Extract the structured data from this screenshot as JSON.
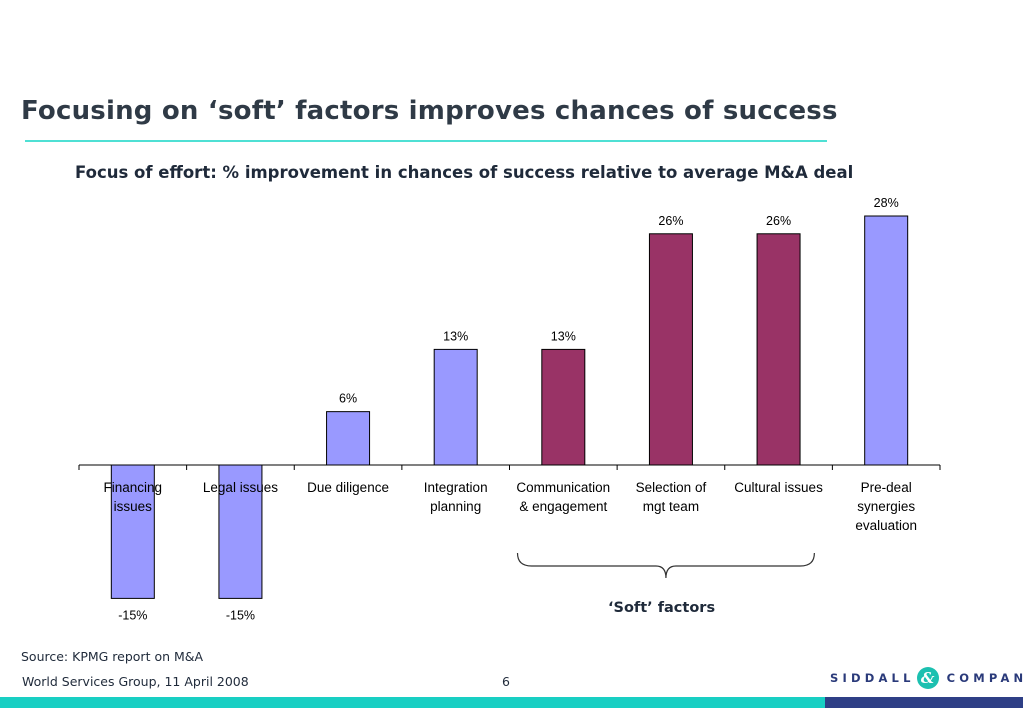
{
  "page": {
    "title": "Focusing on ‘soft’ factors improves chances of success",
    "source": "Source: KPMG report on M&A",
    "footer": "World Services Group, 11 April 2008",
    "page_number": "6",
    "logo": {
      "left": "SIDDALL",
      "amp": "&",
      "right": "COMPANY"
    }
  },
  "chart_data": {
    "type": "bar",
    "title": "Focus of effort:  % improvement in chances of success relative to average M&A deal",
    "categories": [
      [
        "Financing",
        "issues"
      ],
      [
        "Legal issues"
      ],
      [
        "Due diligence"
      ],
      [
        "Integration",
        "planning"
      ],
      [
        "Communication",
        "& engagement"
      ],
      [
        "Selection of",
        "mgt team"
      ],
      [
        "Cultural issues"
      ],
      [
        "Pre-deal",
        "synergies",
        "evaluation"
      ]
    ],
    "values": [
      -15,
      -15,
      6,
      13,
      13,
      26,
      26,
      28
    ],
    "data_labels": [
      "-15%",
      "-15%",
      "6%",
      "13%",
      "13%",
      "26%",
      "26%",
      "28%"
    ],
    "soft_factor": [
      false,
      false,
      false,
      false,
      true,
      true,
      true,
      false
    ],
    "colors": {
      "default": "#9999ff",
      "soft": "#993366",
      "outline": "#000000"
    },
    "annotation": "‘Soft’ factors",
    "bracket_categories": [
      4,
      6
    ],
    "ylim": [
      -15,
      28
    ],
    "grid": false,
    "legend": "none"
  }
}
